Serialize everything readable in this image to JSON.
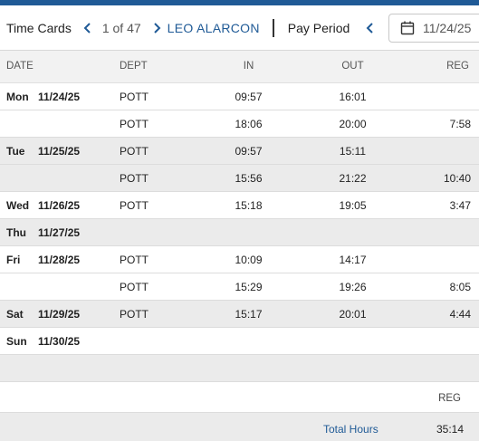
{
  "header": {
    "title": "Time Cards",
    "counter": "1 of 47",
    "employee": "LEO ALARCON",
    "pay_period_label": "Pay Period",
    "date_value": "11/24/25"
  },
  "columns": {
    "date": "DATE",
    "dept": "DEPT",
    "in": "IN",
    "out": "OUT",
    "reg": "REG"
  },
  "rows": [
    {
      "day": "Mon",
      "date": "11/24/25",
      "dept": "POTT",
      "in": "09:57",
      "out": "16:01",
      "reg": ""
    },
    {
      "day": "",
      "date": "",
      "dept": "POTT",
      "in": "18:06",
      "out": "20:00",
      "reg": "7:58"
    },
    {
      "day": "Tue",
      "date": "11/25/25",
      "dept": "POTT",
      "in": "09:57",
      "out": "15:11",
      "reg": ""
    },
    {
      "day": "",
      "date": "",
      "dept": "POTT",
      "in": "15:56",
      "out": "21:22",
      "reg": "10:40"
    },
    {
      "day": "Wed",
      "date": "11/26/25",
      "dept": "POTT",
      "in": "15:18",
      "out": "19:05",
      "reg": "3:47"
    },
    {
      "day": "Thu",
      "date": "11/27/25",
      "dept": "",
      "in": "",
      "out": "",
      "reg": ""
    },
    {
      "day": "Fri",
      "date": "11/28/25",
      "dept": "POTT",
      "in": "10:09",
      "out": "14:17",
      "reg": ""
    },
    {
      "day": "",
      "date": "",
      "dept": "POTT",
      "in": "15:29",
      "out": "19:26",
      "reg": "8:05"
    },
    {
      "day": "Sat",
      "date": "11/29/25",
      "dept": "POTT",
      "in": "15:17",
      "out": "20:01",
      "reg": "4:44"
    },
    {
      "day": "Sun",
      "date": "11/30/25",
      "dept": "",
      "in": "",
      "out": "",
      "reg": ""
    }
  ],
  "summary": {
    "reg_header": "REG",
    "total_label": "Total Hours",
    "total_value": "35:14"
  },
  "colors": {
    "accent": "#1f5a96",
    "shaded_row": "#ebebeb"
  }
}
